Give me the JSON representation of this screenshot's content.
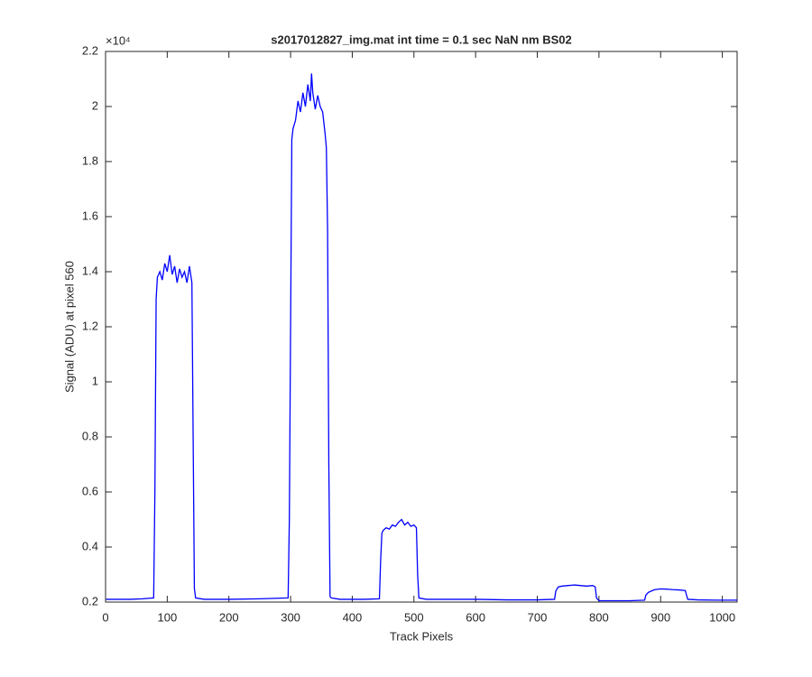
{
  "chart_data": {
    "type": "line",
    "title": "s2017012827_img.mat int time = 0.1 sec  NaN nm BS02",
    "x_label": "Track Pixels",
    "y_label": "Signal (ADU) at pixel 560",
    "y_exponent_label": "×10⁴",
    "xlim": [
      0,
      1024
    ],
    "ylim": [
      0.2,
      2.2
    ],
    "xticks": [
      0,
      100,
      200,
      300,
      400,
      500,
      600,
      700,
      800,
      900,
      1000
    ],
    "yticks": [
      0.2,
      0.4,
      0.6,
      0.8,
      1,
      1.2,
      1.4,
      1.6,
      1.8,
      2,
      2.2
    ],
    "grid": false,
    "series": [
      {
        "color": "#0000ff",
        "x": [
          1,
          20,
          40,
          60,
          78,
          80,
          82,
          84,
          88,
          92,
          96,
          100,
          104,
          108,
          112,
          116,
          120,
          124,
          128,
          132,
          136,
          140,
          142,
          144,
          146,
          160,
          200,
          250,
          296,
          298,
          300,
          302,
          304,
          308,
          312,
          316,
          320,
          324,
          328,
          332,
          334,
          336,
          340,
          344,
          348,
          352,
          356,
          358,
          360,
          362,
          364,
          366,
          380,
          420,
          444,
          446,
          448,
          450,
          455,
          460,
          465,
          470,
          475,
          480,
          485,
          490,
          495,
          500,
          504,
          506,
          508,
          520,
          560,
          600,
          650,
          700,
          728,
          730,
          734,
          740,
          750,
          760,
          770,
          780,
          790,
          794,
          796,
          800,
          820,
          850,
          874,
          876,
          880,
          890,
          900,
          910,
          920,
          930,
          940,
          942,
          944,
          960,
          990,
          1024
        ],
        "values": [
          0.21,
          0.21,
          0.21,
          0.212,
          0.215,
          0.6,
          1.3,
          1.38,
          1.4,
          1.37,
          1.43,
          1.4,
          1.46,
          1.39,
          1.42,
          1.36,
          1.41,
          1.38,
          1.4,
          1.36,
          1.42,
          1.36,
          0.8,
          0.25,
          0.215,
          0.21,
          0.21,
          0.212,
          0.215,
          0.5,
          1.2,
          1.88,
          1.92,
          1.95,
          2.02,
          1.98,
          2.05,
          2.0,
          2.08,
          2.02,
          2.12,
          2.05,
          1.99,
          2.04,
          2.0,
          1.98,
          1.9,
          1.85,
          1.55,
          0.7,
          0.22,
          0.215,
          0.21,
          0.21,
          0.212,
          0.35,
          0.45,
          0.46,
          0.47,
          0.465,
          0.48,
          0.475,
          0.49,
          0.5,
          0.48,
          0.49,
          0.475,
          0.48,
          0.47,
          0.3,
          0.215,
          0.21,
          0.21,
          0.21,
          0.208,
          0.208,
          0.21,
          0.24,
          0.255,
          0.258,
          0.26,
          0.262,
          0.26,
          0.258,
          0.26,
          0.255,
          0.215,
          0.205,
          0.205,
          0.205,
          0.207,
          0.225,
          0.235,
          0.245,
          0.248,
          0.247,
          0.245,
          0.244,
          0.242,
          0.225,
          0.21,
          0.208,
          0.207,
          0.207
        ]
      }
    ]
  }
}
